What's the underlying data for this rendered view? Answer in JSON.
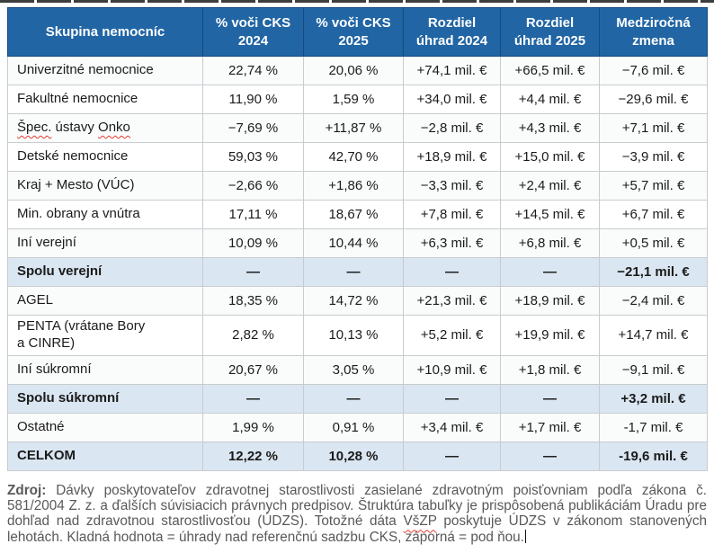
{
  "table": {
    "columns": [
      "Skupina nemocníc",
      "% voči CKS\n2024",
      "% voči CKS\n2025",
      "Rozdiel\núhrad 2024",
      "Rozdiel\núhrad 2025",
      "Medziročná\nzmena"
    ],
    "rows": [
      {
        "group": "Univerzitné nemocnice",
        "values": [
          "22,74 %",
          "20,06 %",
          "+74,1 mil. €",
          "+66,5 mil. €",
          "−7,6 mil. €"
        ],
        "style": "normal"
      },
      {
        "group": "Fakultné nemocnice",
        "values": [
          "11,90 %",
          "1,59 %",
          "+34,0 mil. €",
          "+4,4 mil. €",
          "−29,6 mil. €"
        ],
        "style": "normal"
      },
      {
        "group": "Špec. ústavy Onko",
        "parts": [
          [
            "Špec.",
            true
          ],
          [
            " ústavy ",
            false
          ],
          [
            "Onko",
            true
          ]
        ],
        "values": [
          "−7,69 %",
          "+11,87 %",
          "−2,8 mil. €",
          "+4,3 mil. €",
          "+7,1 mil. €"
        ],
        "style": "normal"
      },
      {
        "group": "Detské nemocnice",
        "values": [
          "59,03 %",
          "42,70 %",
          "+18,9 mil. €",
          "+15,0 mil. €",
          "−3,9 mil. €"
        ],
        "style": "normal"
      },
      {
        "group": "Kraj + Mesto (VÚC)",
        "values": [
          "−2,66 %",
          "+1,86 %",
          "−3,3 mil. €",
          "+2,4 mil. €",
          "+5,7 mil. €"
        ],
        "style": "normal"
      },
      {
        "group": "Min. obrany a vnútra",
        "values": [
          "17,11 %",
          "18,67 %",
          "+7,8 mil. €",
          "+14,5 mil. €",
          "+6,7 mil. €"
        ],
        "style": "normal"
      },
      {
        "group": "Iní verejní",
        "values": [
          "10,09 %",
          "10,44 %",
          "+6,3 mil. €",
          "+6,8 mil. €",
          "+0,5 mil. €"
        ],
        "style": "normal"
      },
      {
        "group": "Spolu verejní",
        "values": [
          "—",
          "—",
          "—",
          "—",
          "−21,1 mil. €"
        ],
        "style": "summary"
      },
      {
        "group": "AGEL",
        "values": [
          "18,35 %",
          "14,72 %",
          "+21,3 mil. €",
          "+18,9 mil. €",
          "−2,4 mil. €"
        ],
        "style": "normal"
      },
      {
        "group": "PENTA (vrátane Bory\na CINRE)",
        "values": [
          "2,82 %",
          "10,13 %",
          "+5,2 mil. €",
          "+19,9 mil. €",
          "+14,7 mil. €"
        ],
        "style": "normal"
      },
      {
        "group": "Iní súkromní",
        "values": [
          "20,67 %",
          "3,05 %",
          "+10,9 mil. €",
          "+1,8 mil. €",
          "−9,1 mil. €"
        ],
        "style": "normal"
      },
      {
        "group": "Spolu súkromní",
        "values": [
          "—",
          "—",
          "—",
          "—",
          "+3,2 mil. €"
        ],
        "style": "summary"
      },
      {
        "group": "Ostatné",
        "values": [
          "1,99 %",
          "0,91 %",
          "+3,4 mil. €",
          "+1,7 mil. €",
          "-1,7 mil. €"
        ],
        "style": "normal"
      },
      {
        "group": "CELKOM",
        "values": [
          "12,22 %",
          "10,28 %",
          "—",
          "—",
          "-19,6 mil. €"
        ],
        "style": "summary"
      }
    ]
  },
  "footnote": {
    "label": "Zdroj:",
    "before_vszp": " Dávky poskytovateľov zdravotnej starostlivosti zasielané zdravotným poisťovniam podľa zákona č. 581/2004 Z. z. a ďalších súvisiacich právnych predpisov. Štruktúra tabuľky je prispôsobená publikáciám Úradu pre dohľad nad zdravotnou starostlivosťou (ÚDZS). Totožné dáta ",
    "vszp": "VšZP",
    "after_vszp": " poskytuje ÚDZS v zákonom stanovených lehotách. Kladná hodnota = úhrady nad referenčnú sadzbu CKS, záporná = pod ňou."
  },
  "colors": {
    "header_bg": "#2165a4",
    "header_border": "#164a7e",
    "summary_bg": "#dae6f1",
    "border": "#c8cccf",
    "footnote_text": "#595959",
    "spellcheck": "#e03c31"
  }
}
